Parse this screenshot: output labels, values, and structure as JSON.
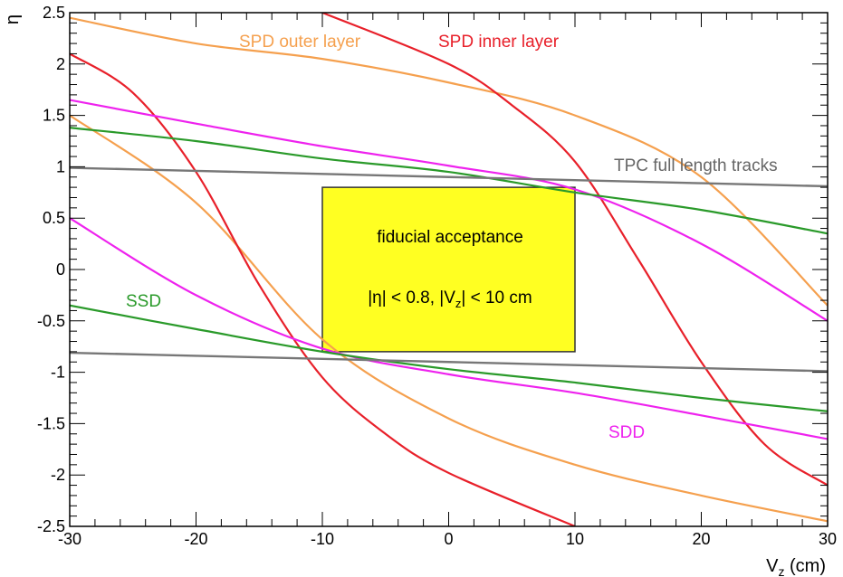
{
  "chart_data": {
    "type": "line",
    "title": "",
    "xlabel": "V",
    "xlabel_sub": "z",
    "xlabel_unit": " (cm)",
    "ylabel": "η",
    "xlim": [
      -30,
      30
    ],
    "ylim": [
      -2.5,
      2.5
    ],
    "x_ticks": [
      "-30",
      "-20",
      "-10",
      "0",
      "10",
      "20",
      "30"
    ],
    "y_ticks": [
      "2.5",
      "2",
      "1.5",
      "1",
      "0.5",
      "0",
      "-0.5",
      "-1",
      "-1.5",
      "-2",
      "-2.5"
    ],
    "grid": false,
    "colors": {
      "spd_outer": "#f5a04e",
      "spd_inner": "#e8202a",
      "sdd": "#ee22ee",
      "ssd": "#2a9a2a",
      "tpc": "#777777",
      "box": "#ffff22"
    },
    "series": [
      {
        "name": "SPD outer layer",
        "color_key": "spd_outer",
        "x": [
          -30,
          -20,
          -10,
          0,
          10,
          20,
          30
        ],
        "y": [
          2.45,
          2.2,
          2.05,
          1.82,
          1.5,
          0.9,
          -0.35
        ]
      },
      {
        "name": "SPD outer layer",
        "color_key": "spd_outer",
        "x": [
          -30,
          -20,
          -10,
          0,
          10,
          20,
          30
        ],
        "y": [
          1.5,
          0.65,
          -0.68,
          -1.45,
          -1.9,
          -2.2,
          -2.45
        ]
      },
      {
        "name": "SPD inner layer",
        "color_key": "spd_inner",
        "x": [
          -30,
          -25,
          -20,
          -15,
          -10,
          -5,
          0,
          10
        ],
        "y": [
          2.1,
          1.72,
          0.95,
          -0.15,
          -1.05,
          -1.6,
          -1.98,
          -2.5
        ]
      },
      {
        "name": "SPD inner layer",
        "color_key": "spd_inner",
        "x": [
          -10,
          0,
          5,
          10,
          15,
          20,
          25,
          30
        ],
        "y": [
          2.5,
          2.0,
          1.6,
          1.05,
          0.1,
          -0.9,
          -1.7,
          -2.1
        ]
      },
      {
        "name": "SDD",
        "color_key": "sdd",
        "x": [
          -30,
          -20,
          -10,
          0,
          10,
          20,
          30
        ],
        "y": [
          1.65,
          1.42,
          1.2,
          1.01,
          0.78,
          0.25,
          -0.5
        ]
      },
      {
        "name": "SDD",
        "color_key": "sdd",
        "x": [
          -30,
          -20,
          -10,
          0,
          10,
          20,
          30
        ],
        "y": [
          0.5,
          -0.25,
          -0.77,
          -1.02,
          -1.2,
          -1.42,
          -1.65
        ]
      },
      {
        "name": "SSD",
        "color_key": "ssd",
        "x": [
          -30,
          -20,
          -10,
          0,
          10,
          20,
          30
        ],
        "y": [
          1.38,
          1.25,
          1.08,
          0.95,
          0.75,
          0.58,
          0.35
        ]
      },
      {
        "name": "SSD",
        "color_key": "ssd",
        "x": [
          -30,
          -20,
          -10,
          0,
          10,
          20,
          30
        ],
        "y": [
          -0.35,
          -0.58,
          -0.8,
          -0.97,
          -1.1,
          -1.25,
          -1.38
        ]
      },
      {
        "name": "TPC full length tracks",
        "color_key": "tpc",
        "x": [
          -30,
          -20,
          -10,
          0,
          10,
          20,
          30
        ],
        "y": [
          0.99,
          0.96,
          0.93,
          0.9,
          0.87,
          0.84,
          0.81
        ]
      },
      {
        "name": "TPC full length tracks",
        "color_key": "tpc",
        "x": [
          -30,
          -20,
          -10,
          0,
          10,
          20,
          30
        ],
        "y": [
          -0.81,
          -0.84,
          -0.87,
          -0.9,
          -0.93,
          -0.96,
          -0.99
        ]
      }
    ],
    "acceptance_box": {
      "x": [
        -10,
        10
      ],
      "y": [
        -0.8,
        0.8
      ]
    },
    "annotations": {
      "spd_outer": "SPD outer layer",
      "spd_inner": "SPD inner layer",
      "tpc": "TPC full length tracks",
      "ssd": "SSD",
      "sdd": "SDD",
      "box_title": "fiducial acceptance",
      "box_cond_a": "|η| < 0.8, |V",
      "box_cond_sub": "z",
      "box_cond_b": "| < 10 cm"
    }
  }
}
